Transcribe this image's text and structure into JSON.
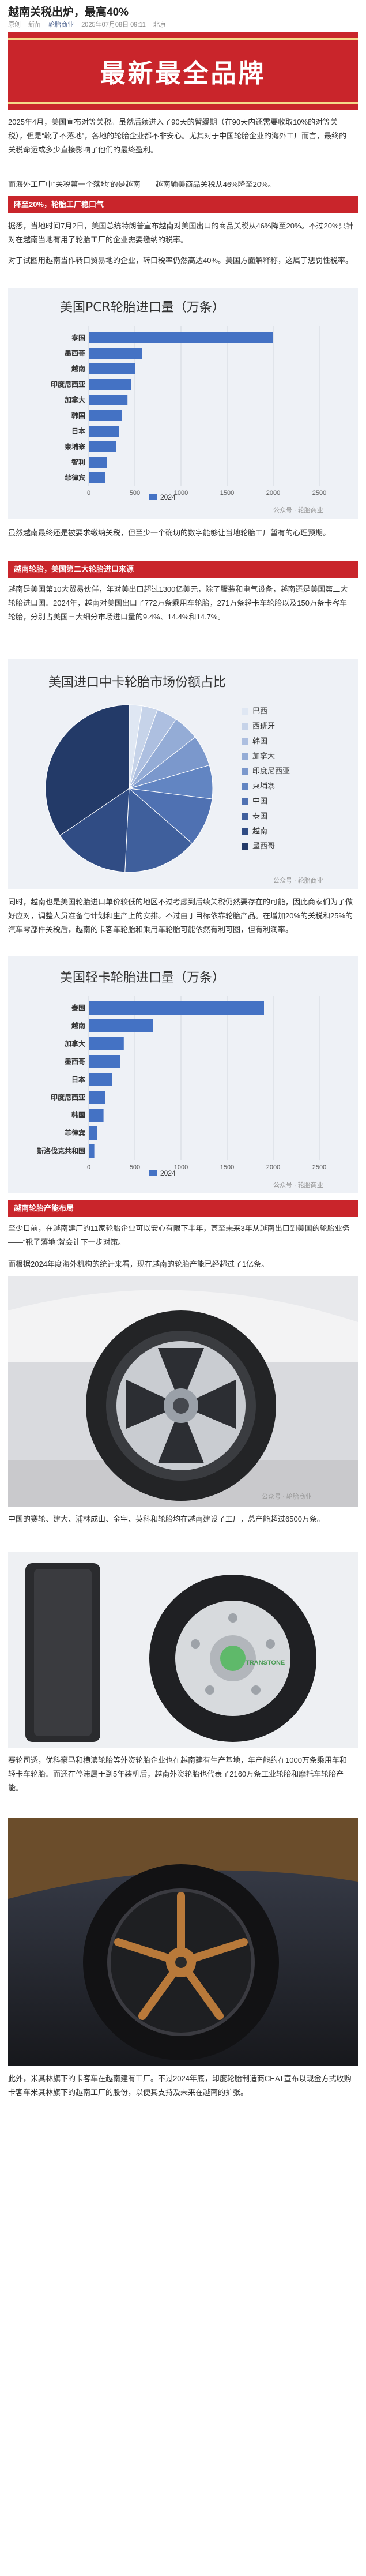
{
  "header": {
    "title": "越南关税出炉，最高40%",
    "tag1": "原创",
    "tag2": "新苗",
    "account": "轮胎商业",
    "datetime": "2025年07月08日 09:11",
    "location": "北京"
  },
  "hero": {
    "text": "最新最全品牌"
  },
  "paragraphs": {
    "p1": "2025年4月，美国宣布对等关税。虽然后续进入了90天的暂缓期（在90天内还需要收取10%的对等关税），但是“靴子不落地”，各地的轮胎企业都不非安心。尤其对于中国轮胎企业的海外工厂而言，最终的关税命运或多少直接影响了他们的最终盈利。",
    "p2": "而海外工厂中“关税第一个落地”的是越南——越南输美商品关税从46%降至20%。",
    "p3": "据悉，当地时间7月2日，美国总统特朗普宣布越南对美国出口的商品关税从46%降至20%。不过20%只针对在越南当地有用了轮胎工厂的企业需要缴纳的税率。",
    "p4": "对于试图用越南当作转口贸易地的企业，转口税率仍然高达40%。美国方面解释称，这属于惩罚性税率。",
    "p5": "虽然越南最终还是被要求缴纳关税，但至少一个确切的数字能够让当地轮胎工厂暂有的心理预期。",
    "p6": "同时，越南也是美国轮胎进口单价较低的地区不过考虑到后续关税仍然要存在的可能，因此商家们为了做好应对，调整人员准备与计划和生产上的安排。不过由于目标依靠轮胎产品。在增加20%的关税和25%的汽车零部件关税后，越南的卡客车轮胎和乘用车轮胎可能依然有利可图，但有利润率。",
    "p7": "至少目前，在越南建厂的11家轮胎企业可以安心有限下半年，甚至未来3年从越南出口到美国的轮胎业务——“靴子落地”就会让下一步对策。",
    "p8": "而根据2024年度海外机构的统计来看，现在越南的轮胎产能已经超过了1亿条。",
    "p9": "中国的赛轮、建大、浦林成山、金宇、英科和轮胎均在越南建设了工厂，总产能超过6500万条。",
    "p10": "赛轮司透，优科豪马和横滨轮胎等外资轮胎企业也在越南建有生产基地，年产能约在1000万条乘用车和轻卡车轮胎。而还在停滞属于到5年装机后，越南外资轮胎也代表了2160万条工业轮胎和摩托车轮胎产能。",
    "p11": "此外，米其林旗下的卡客车在越南建有工厂。不过2024年底，印度轮胎制造商CEAT宣布以现金方式收购卡客车米其林旗下的越南工厂的股份，以便其支持及未来在越南的扩张。"
  },
  "banners": {
    "b1": "降至20%，轮胎工厂稳口气",
    "b2": "越南轮胎，美国第二大轮胎进口来源",
    "b3": "越南轮胎产能布局"
  },
  "watermark": "公众号 · 轮胎商业",
  "chart1": {
    "type": "bar",
    "title": "美国PCR轮胎进口量（万条）",
    "categories": [
      "泰国",
      "墨西哥",
      "越南",
      "印度尼西亚",
      "加拿大",
      "韩国",
      "日本",
      "柬埔寨",
      "智利",
      "菲律宾"
    ],
    "values": [
      2000,
      580,
      500,
      460,
      420,
      360,
      330,
      300,
      200,
      180
    ],
    "ticks": [
      0,
      500,
      1000,
      1500,
      2000,
      2500
    ],
    "xlim": [
      0,
      2500
    ],
    "legend": "2024",
    "color": "#4472c4"
  },
  "chart2": {
    "type": "pie",
    "title": "美国进口中卡轮胎市场份额占比",
    "labels": [
      "巴西",
      "西班牙",
      "韩国",
      "加拿大",
      "印度尼西亚",
      "柬埔寨",
      "中国",
      "泰国",
      "越南",
      "墨西哥"
    ],
    "values": [
      2.5,
      3,
      4,
      5,
      6,
      6.5,
      9.4,
      14.4,
      14.7,
      34.5
    ],
    "colors": [
      "#dfe7f3",
      "#c6d3e9",
      "#adbfe0",
      "#94acd6",
      "#7b98cc",
      "#6285c2",
      "#4f71b2",
      "#3f5f9c",
      "#304c84",
      "#233a68"
    ]
  },
  "chart3": {
    "type": "bar",
    "title": "美国轻卡轮胎进口量（万条）",
    "categories": [
      "泰国",
      "越南",
      "加拿大",
      "墨西哥",
      "日本",
      "印度尼西亚",
      "韩国",
      "菲律宾",
      "斯洛伐克共和国"
    ],
    "values": [
      1900,
      700,
      380,
      340,
      250,
      180,
      160,
      90,
      60
    ],
    "ticks": [
      0,
      500,
      1000,
      1500,
      2000,
      2500
    ],
    "xlim": [
      0,
      2500
    ],
    "legend": "2024",
    "color": "#4472c4"
  },
  "photos": {
    "photo3_label": "TRANSTONE"
  }
}
